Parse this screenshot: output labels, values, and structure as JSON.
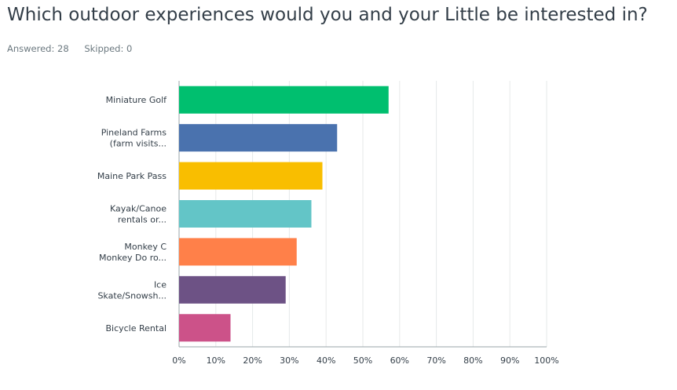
{
  "question": "Which outdoor experiences would you and your Little be interested in?",
  "stats": {
    "answered": "Answered: 28",
    "skipped": "Skipped: 0"
  },
  "chart_data": {
    "type": "bar",
    "orientation": "horizontal",
    "categories": [
      [
        "Miniature Golf"
      ],
      [
        "Pineland Farms",
        "(farm visits..."
      ],
      [
        "Maine Park Pass"
      ],
      [
        "Kayak/Canoe",
        "rentals or..."
      ],
      [
        "Monkey C",
        "Monkey Do ro..."
      ],
      [
        "Ice",
        "Skate/Snowsh..."
      ],
      [
        "Bicycle Rental"
      ]
    ],
    "values": [
      57,
      43,
      39,
      36,
      32,
      29,
      14
    ],
    "colors": [
      "#00bf6f",
      "#4a72ae",
      "#f9be00",
      "#63c5c7",
      "#ff8049",
      "#6d5285",
      "#cc5289"
    ],
    "xlim": [
      0,
      100
    ],
    "xticks": [
      "0%",
      "10%",
      "20%",
      "30%",
      "40%",
      "50%",
      "60%",
      "70%",
      "80%",
      "90%",
      "100%"
    ],
    "grid": true
  }
}
